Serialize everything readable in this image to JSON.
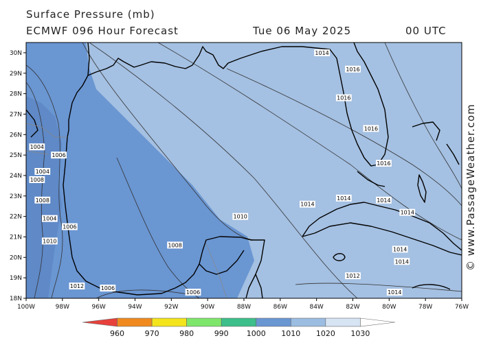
{
  "header": {
    "title": "Surface Pressure (mb)",
    "model": "ECMWF 096 Hour Forecast",
    "date": "Tue 06 May 2025",
    "time": "00 UTC"
  },
  "credit": "© www.PassageWeather.com",
  "axes": {
    "lon_labels": [
      "100W",
      "98W",
      "96W",
      "94W",
      "92W",
      "90W",
      "88W",
      "86W",
      "84W",
      "82W",
      "80W",
      "78W",
      "76W"
    ],
    "lat_labels": [
      "30N",
      "29N",
      "28N",
      "27N",
      "26N",
      "25N",
      "24N",
      "23N",
      "22N",
      "21N",
      "20N",
      "19N",
      "18N"
    ]
  },
  "contour_labels": [
    {
      "text": "1014",
      "lon": -83.7,
      "lat": 30.0
    },
    {
      "text": "1016",
      "lon": -82.0,
      "lat": 29.2
    },
    {
      "text": "1016",
      "lon": -82.5,
      "lat": 27.8
    },
    {
      "text": "1016",
      "lon": -81.0,
      "lat": 26.3
    },
    {
      "text": "1016",
      "lon": -80.3,
      "lat": 24.6
    },
    {
      "text": "1014",
      "lon": -82.5,
      "lat": 22.9
    },
    {
      "text": "1014",
      "lon": -84.5,
      "lat": 22.6
    },
    {
      "text": "1014",
      "lon": -80.3,
      "lat": 22.8
    },
    {
      "text": "1014",
      "lon": -79.0,
      "lat": 22.2
    },
    {
      "text": "1014",
      "lon": -79.4,
      "lat": 20.4
    },
    {
      "text": "1014",
      "lon": -79.3,
      "lat": 19.8
    },
    {
      "text": "1014",
      "lon": -79.7,
      "lat": 18.3
    },
    {
      "text": "1010",
      "lon": -88.2,
      "lat": 22.0
    },
    {
      "text": "1008",
      "lon": -91.8,
      "lat": 20.6
    },
    {
      "text": "1012",
      "lon": -82.0,
      "lat": 19.1
    },
    {
      "text": "1006",
      "lon": -98.2,
      "lat": 25.0
    },
    {
      "text": "1006",
      "lon": -97.6,
      "lat": 21.5
    },
    {
      "text": "1006",
      "lon": -95.5,
      "lat": 18.5
    },
    {
      "text": "1006",
      "lon": -90.8,
      "lat": 18.3
    },
    {
      "text": "1008",
      "lon": -99.1,
      "lat": 22.8
    },
    {
      "text": "1004",
      "lon": -98.7,
      "lat": 21.9
    },
    {
      "text": "1004",
      "lon": -99.1,
      "lat": 24.2
    },
    {
      "text": "1004",
      "lon": -99.4,
      "lat": 25.4
    },
    {
      "text": "1008",
      "lon": -99.4,
      "lat": 23.8
    },
    {
      "text": "1010",
      "lon": -98.7,
      "lat": 20.8
    },
    {
      "text": "1012",
      "lon": -97.2,
      "lat": 18.6
    }
  ],
  "legend": {
    "labels": [
      "960",
      "970",
      "980",
      "990",
      "1000",
      "1010",
      "1020",
      "1030"
    ],
    "colors": [
      "#e8413c",
      "#f08a1e",
      "#f3e41b",
      "#7ee66a",
      "#3cbf8a",
      "#6a96d2",
      "#9bbde2",
      "#d6e4f4",
      "#ffffff"
    ]
  },
  "colors": {
    "band_1000_1010": "#6a96d2",
    "band_1010_1020": "#a4c0e2",
    "land_outline": "#000000",
    "contour": "#333333"
  }
}
